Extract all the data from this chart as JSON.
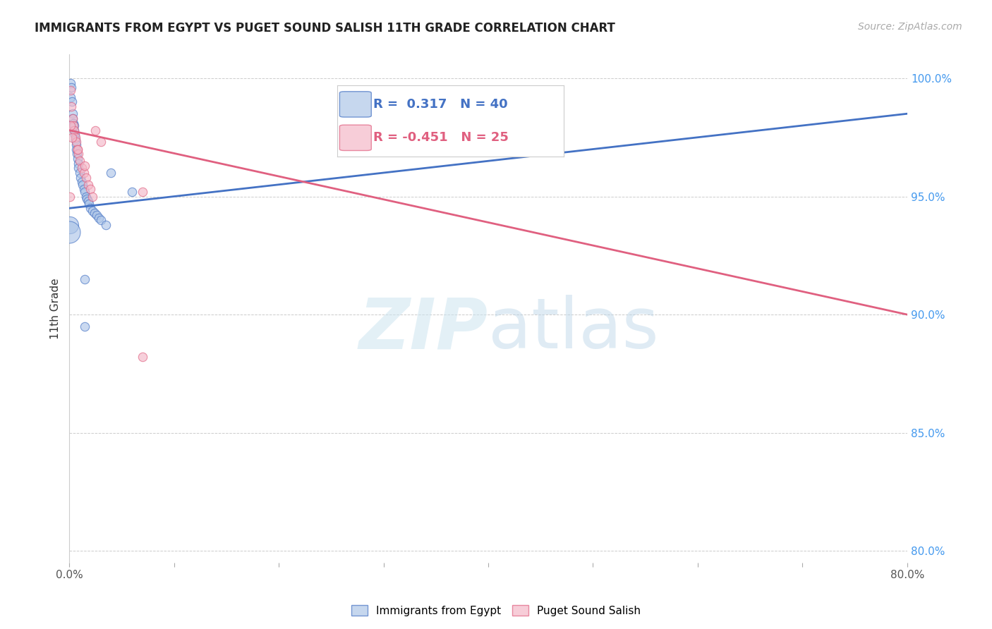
{
  "title": "IMMIGRANTS FROM EGYPT VS PUGET SOUND SALISH 11TH GRADE CORRELATION CHART",
  "source": "Source: ZipAtlas.com",
  "ylabel": "11th Grade",
  "xlim_pct": [
    0.0,
    80.0
  ],
  "ylim_pct": [
    79.5,
    101.0
  ],
  "xticks_pct": [
    0.0,
    10.0,
    20.0,
    30.0,
    40.0,
    50.0,
    60.0,
    70.0,
    80.0
  ],
  "yticks_pct": [
    80.0,
    85.0,
    90.0,
    95.0,
    100.0
  ],
  "blue_color": "#aec6e8",
  "pink_color": "#f4b8c8",
  "blue_line_color": "#4472c4",
  "pink_line_color": "#e06080",
  "blue_scatter_pct": [
    [
      0.1,
      99.8
    ],
    [
      0.2,
      99.6
    ],
    [
      0.15,
      99.2
    ],
    [
      0.25,
      99.0
    ],
    [
      0.3,
      98.5
    ],
    [
      0.35,
      98.3
    ],
    [
      0.4,
      98.1
    ],
    [
      0.45,
      98.0
    ],
    [
      0.5,
      97.8
    ],
    [
      0.55,
      97.6
    ],
    [
      0.6,
      97.4
    ],
    [
      0.65,
      97.2
    ],
    [
      0.7,
      97.0
    ],
    [
      0.75,
      96.8
    ],
    [
      0.8,
      96.6
    ],
    [
      0.85,
      96.4
    ],
    [
      0.9,
      96.2
    ],
    [
      1.0,
      96.0
    ],
    [
      1.1,
      95.8
    ],
    [
      1.2,
      95.6
    ],
    [
      1.3,
      95.5
    ],
    [
      1.4,
      95.3
    ],
    [
      1.5,
      95.2
    ],
    [
      1.6,
      95.0
    ],
    [
      1.7,
      94.9
    ],
    [
      1.8,
      94.8
    ],
    [
      1.9,
      94.7
    ],
    [
      2.0,
      94.5
    ],
    [
      2.2,
      94.4
    ],
    [
      2.4,
      94.3
    ],
    [
      2.6,
      94.2
    ],
    [
      2.8,
      94.1
    ],
    [
      3.0,
      94.0
    ],
    [
      3.5,
      93.8
    ],
    [
      4.0,
      96.0
    ],
    [
      0.05,
      93.8
    ],
    [
      1.5,
      91.5
    ],
    [
      1.5,
      89.5
    ],
    [
      6.0,
      95.2
    ],
    [
      0.0,
      93.5
    ]
  ],
  "pink_scatter_pct": [
    [
      0.1,
      99.5
    ],
    [
      0.2,
      98.8
    ],
    [
      0.3,
      98.3
    ],
    [
      0.4,
      98.0
    ],
    [
      0.5,
      97.8
    ],
    [
      0.6,
      97.5
    ],
    [
      0.7,
      97.3
    ],
    [
      0.8,
      97.0
    ],
    [
      0.9,
      96.8
    ],
    [
      1.0,
      96.5
    ],
    [
      1.2,
      96.2
    ],
    [
      1.4,
      96.0
    ],
    [
      1.6,
      95.8
    ],
    [
      1.8,
      95.5
    ],
    [
      2.0,
      95.3
    ],
    [
      2.2,
      95.0
    ],
    [
      2.5,
      97.8
    ],
    [
      3.0,
      97.3
    ],
    [
      0.15,
      98.0
    ],
    [
      0.25,
      97.5
    ],
    [
      1.5,
      96.3
    ],
    [
      0.8,
      97.0
    ],
    [
      7.0,
      95.2
    ],
    [
      7.0,
      88.2
    ],
    [
      0.05,
      95.0
    ]
  ],
  "blue_line_pct": [
    [
      0.0,
      94.5
    ],
    [
      80.0,
      98.5
    ]
  ],
  "pink_line_pct": [
    [
      0.0,
      97.8
    ],
    [
      80.0,
      90.0
    ]
  ],
  "blue_dot_sizes": [
    80,
    80,
    80,
    80,
    80,
    80,
    80,
    80,
    80,
    80,
    80,
    80,
    80,
    80,
    80,
    80,
    80,
    80,
    80,
    80,
    80,
    80,
    80,
    80,
    80,
    80,
    80,
    80,
    80,
    80,
    80,
    80,
    80,
    80,
    80,
    300,
    80,
    80,
    80,
    500
  ],
  "pink_dot_sizes": [
    80,
    80,
    80,
    80,
    80,
    80,
    80,
    80,
    80,
    80,
    80,
    80,
    80,
    80,
    80,
    80,
    80,
    80,
    80,
    80,
    80,
    80,
    80,
    80,
    80
  ],
  "legend_blue_text": "R =  0.317   N = 40",
  "legend_pink_text": "R = -0.451   N = 25",
  "legend_blue_color_text": "#4472c4",
  "legend_pink_color_text": "#e06080",
  "bottom_legend": [
    "Immigrants from Egypt",
    "Puget Sound Salish"
  ]
}
